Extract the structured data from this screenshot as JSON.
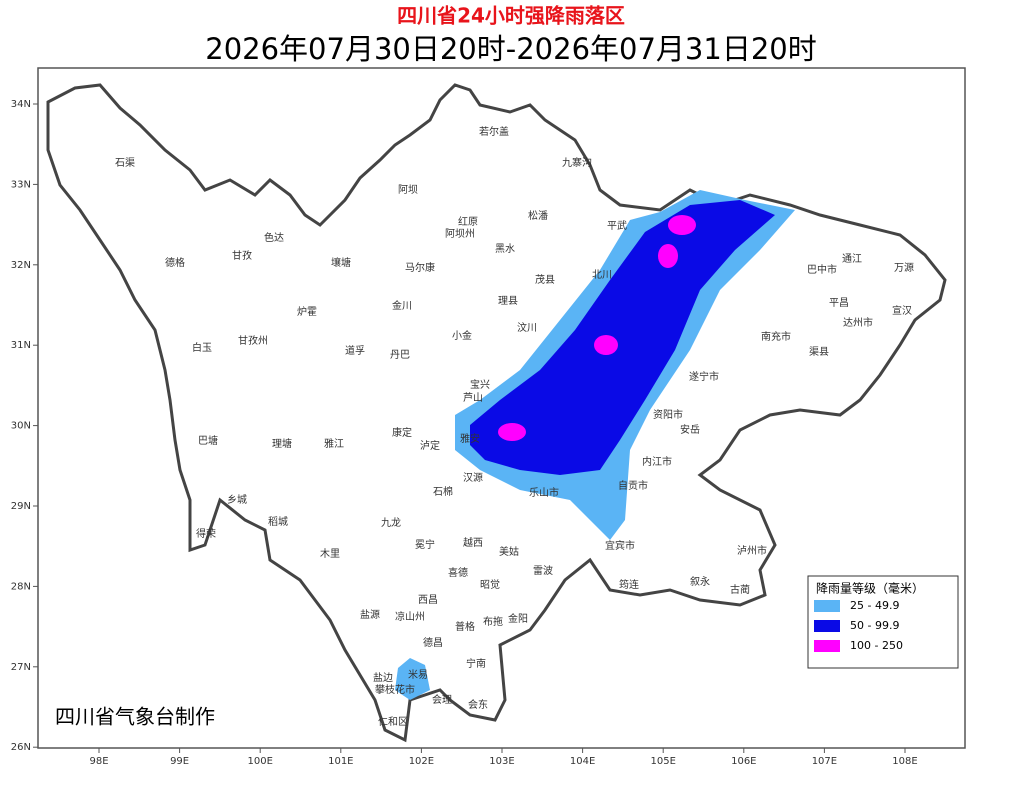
{
  "header": {
    "title": "四川省24小时强降雨落区",
    "subtitle": "2026年07月30日20时-2026年07月31日20时"
  },
  "map": {
    "lat_ticks": [
      {
        "value": 34,
        "label": "34N"
      },
      {
        "value": 33,
        "label": "33N"
      },
      {
        "value": 32,
        "label": "32N"
      },
      {
        "value": 31,
        "label": "31N"
      },
      {
        "value": 30,
        "label": "30N"
      },
      {
        "value": 29,
        "label": "29N"
      },
      {
        "value": 28,
        "label": "28N"
      },
      {
        "value": 27,
        "label": "27N"
      },
      {
        "value": 26,
        "label": "26N"
      }
    ],
    "lon_ticks": [
      {
        "value": 98,
        "label": "98E"
      },
      {
        "value": 99,
        "label": "99E"
      },
      {
        "value": 100,
        "label": "100E"
      },
      {
        "value": 101,
        "label": "101E"
      },
      {
        "value": 102,
        "label": "102E"
      },
      {
        "value": 103,
        "label": "103E"
      },
      {
        "value": 104,
        "label": "104E"
      },
      {
        "value": 105,
        "label": "105E"
      },
      {
        "value": 106,
        "label": "106E"
      },
      {
        "value": 107,
        "label": "107E"
      },
      {
        "value": 108,
        "label": "108E"
      }
    ],
    "places": [
      "石渠",
      "若尔盖",
      "九寨沟",
      "阿坝",
      "红原",
      "阿坝州",
      "松潘",
      "平武",
      "德格",
      "色达",
      "甘孜",
      "壤塘",
      "马尔康",
      "黑水",
      "茂县",
      "北川",
      "通江",
      "万源",
      "巴中市",
      "金川",
      "理县",
      "炉霍",
      "小金",
      "汶川",
      "白玉",
      "甘孜州",
      "道孚",
      "丹巴",
      "宣汉",
      "平昌",
      "达州市",
      "南充市",
      "渠县",
      "宝兴",
      "芦山",
      "雅安",
      "巴塘",
      "理塘",
      "雅江",
      "康定",
      "泸定",
      "遂宁市",
      "资阳市",
      "安岳",
      "乐山市",
      "内江市",
      "自贡市",
      "乡城",
      "稻城",
      "九龙",
      "石棉",
      "汉源",
      "得荣",
      "木里",
      "冕宁",
      "越西",
      "美姑",
      "宜宾市",
      "泸州市",
      "喜德",
      "昭觉",
      "雷波",
      "筠连",
      "古蔺",
      "叙永",
      "盐源",
      "西昌",
      "凉山州",
      "普格",
      "布拖",
      "金阳",
      "德昌",
      "宁南",
      "米易",
      "会理",
      "会东",
      "攀枝花市",
      "盐边",
      "仁和区"
    ]
  },
  "legend": {
    "title": "降雨量等级（毫米）",
    "items": [
      {
        "label": "25 - 49.9",
        "color": "#5ab4f5"
      },
      {
        "label": "50 - 99.9",
        "color": "#0a0ae6"
      },
      {
        "label": "100 - 250",
        "color": "#ff00ff"
      }
    ]
  },
  "credit": "四川省气象台制作"
}
